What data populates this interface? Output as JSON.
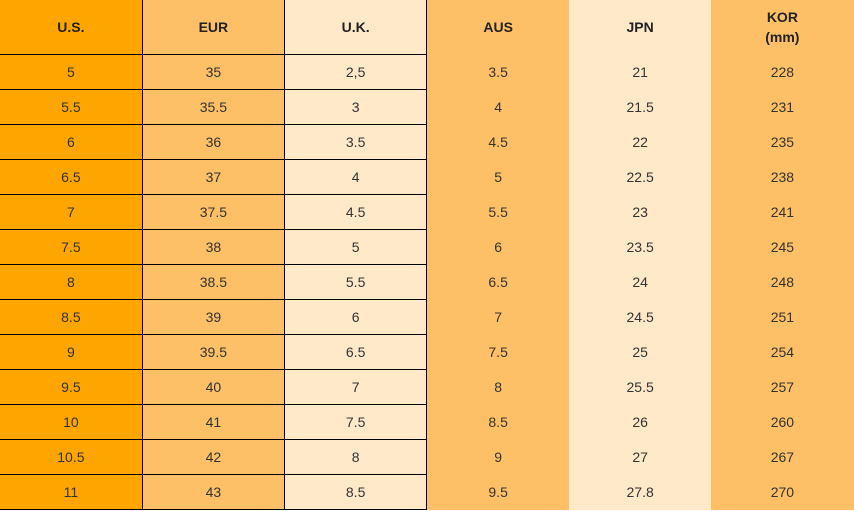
{
  "table": {
    "headers": [
      "U.S.",
      "EUR",
      "U.K.",
      "AUS",
      "JPN",
      "KOR\n(mm)"
    ],
    "rows": [
      [
        "5",
        "35",
        "2,5",
        "3.5",
        "21",
        "228"
      ],
      [
        "5.5",
        "35.5",
        "3",
        "4",
        "21.5",
        "231"
      ],
      [
        "6",
        "36",
        "3.5",
        "4.5",
        "22",
        "235"
      ],
      [
        "6.5",
        "37",
        "4",
        "5",
        "22.5",
        "238"
      ],
      [
        "7",
        "37.5",
        "4.5",
        "5.5",
        "23",
        "241"
      ],
      [
        "7.5",
        "38",
        "5",
        "6",
        "23.5",
        "245"
      ],
      [
        "8",
        "38.5",
        "5.5",
        "6.5",
        "24",
        "248"
      ],
      [
        "8.5",
        "39",
        "6",
        "7",
        "24.5",
        "251"
      ],
      [
        "9",
        "39.5",
        "6.5",
        "7.5",
        "25",
        "254"
      ],
      [
        "9.5",
        "40",
        "7",
        "8",
        "25.5",
        "257"
      ],
      [
        "10",
        "41",
        "7.5",
        "8.5",
        "26",
        "260"
      ],
      [
        "10.5",
        "42",
        "8",
        "9",
        "27",
        "267"
      ],
      [
        "11",
        "43",
        "8.5",
        "9.5",
        "27.8",
        "270"
      ]
    ]
  }
}
